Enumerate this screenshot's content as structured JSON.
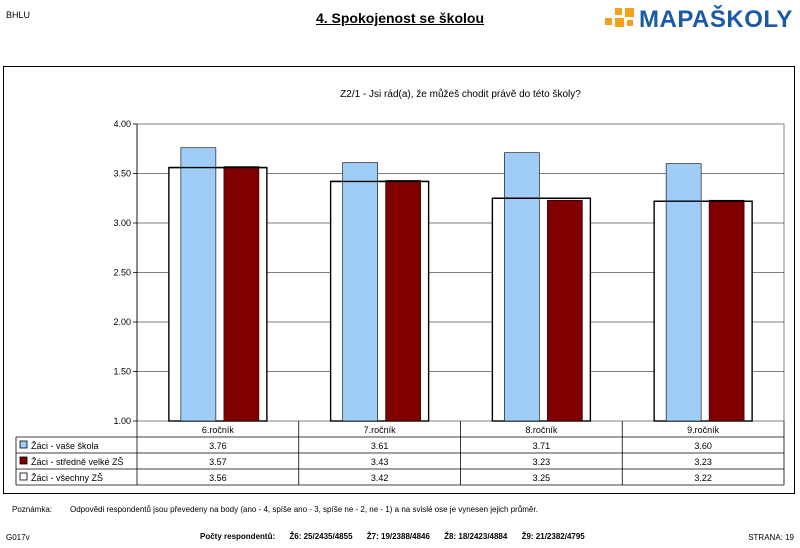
{
  "header": {
    "school_code": "BHLU",
    "title": "4. Spokojenost se školou",
    "logo_text": "MAPAŠKOLY",
    "logo_color": "#1b5aa5",
    "logo_accent": "#f2a11c"
  },
  "chart_data": {
    "type": "bar",
    "title": "Z2/1 - Jsi rád(a), že můžeš chodit právě do této školy?",
    "categories": [
      "6.ročník",
      "7.ročník",
      "8.ročník",
      "9.ročník"
    ],
    "ylim": [
      1.0,
      4.0
    ],
    "yticks": [
      "1.00",
      "1.50",
      "2.00",
      "2.50",
      "3.00",
      "3.50",
      "4.00"
    ],
    "grid": true,
    "legend_placement": "data-table",
    "series": [
      {
        "name": "Žáci - vaše škola",
        "values": [
          3.76,
          3.61,
          3.71,
          3.6
        ],
        "labels": [
          "3.76",
          "3.61",
          "3.71",
          "3.60"
        ],
        "color": "#9fcdf7",
        "style": "bar"
      },
      {
        "name": "Žáci - středně velké ZŠ",
        "values": [
          3.57,
          3.43,
          3.23,
          3.23
        ],
        "labels": [
          "3.57",
          "3.43",
          "3.23",
          "3.23"
        ],
        "color": "#800000",
        "style": "bar"
      },
      {
        "name": "Žáci - všechny ZŠ",
        "values": [
          3.56,
          3.42,
          3.25,
          3.22
        ],
        "labels": [
          "3.56",
          "3.42",
          "3.25",
          "3.22"
        ],
        "color": "#ffffff",
        "style": "outline"
      }
    ]
  },
  "note": {
    "label": "Poznámka:",
    "text": "Odpovědi respondentů jsou převedeny na body (ano - 4, spíše ano - 3, spíše ne - 2, ne - 1) a na svislé ose je vynesen jejich průměr."
  },
  "footer": {
    "code": "G017v",
    "respondents_label": "Počty respondentů:",
    "respondents": [
      "Ž6: 25/2435/4855",
      "Ž7: 19/2388/4846",
      "Ž8: 18/2423/4884",
      "Ž9: 21/2382/4795"
    ],
    "page": "STRANA: 19"
  }
}
